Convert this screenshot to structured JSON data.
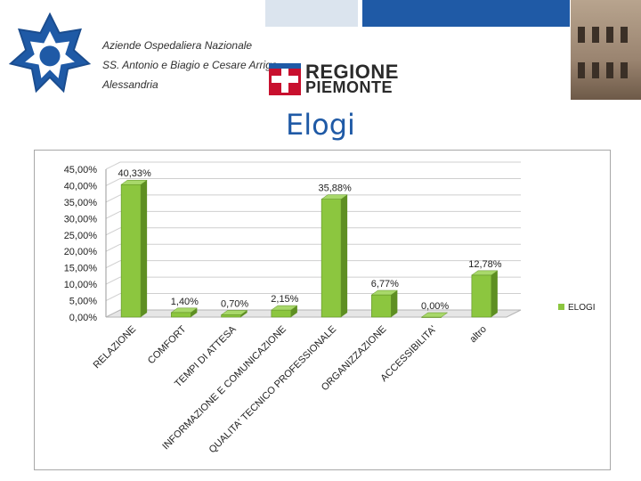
{
  "header": {
    "org_lines": [
      "Aziende Ospedaliera Nazionale",
      "SS. Antonio e Biagio e Cesare Arrigo",
      "Alessandria"
    ],
    "region_lines": [
      "REGIONE",
      "PIEMONTE"
    ],
    "title": "Elogi"
  },
  "colors": {
    "accent_blue": "#1f5aa6",
    "bar_green": "#8cc63f",
    "bar_dark": "#5e8f22"
  },
  "chart_data": {
    "type": "bar",
    "title": "",
    "xlabel": "",
    "ylabel": "",
    "ylim": [
      0,
      45
    ],
    "y_ticks": [
      "0,00%",
      "5,00%",
      "10,00%",
      "15,00%",
      "20,00%",
      "25,00%",
      "30,00%",
      "35,00%",
      "40,00%",
      "45,00%"
    ],
    "categories": [
      "RELAZIONE",
      "COMFORT",
      "TEMPI DI ATTESA",
      "INFORMAZIONE E COMUNICAZIONE",
      "QUALITA' TECNICO PROFESSIONALE",
      "ORGANIZZAZIONE",
      "ACCESSIBILITA'",
      "altro"
    ],
    "values": [
      40.33,
      1.4,
      0.7,
      2.15,
      35.88,
      6.77,
      0.0,
      12.78
    ],
    "data_labels": [
      "40,33%",
      "1,40%",
      "0,70%",
      "2,15%",
      "35,88%",
      "6,77%",
      "0,00%",
      "12,78%"
    ],
    "series": [
      {
        "name": "ELOGI"
      }
    ],
    "legend_position": "right",
    "grid": true
  }
}
